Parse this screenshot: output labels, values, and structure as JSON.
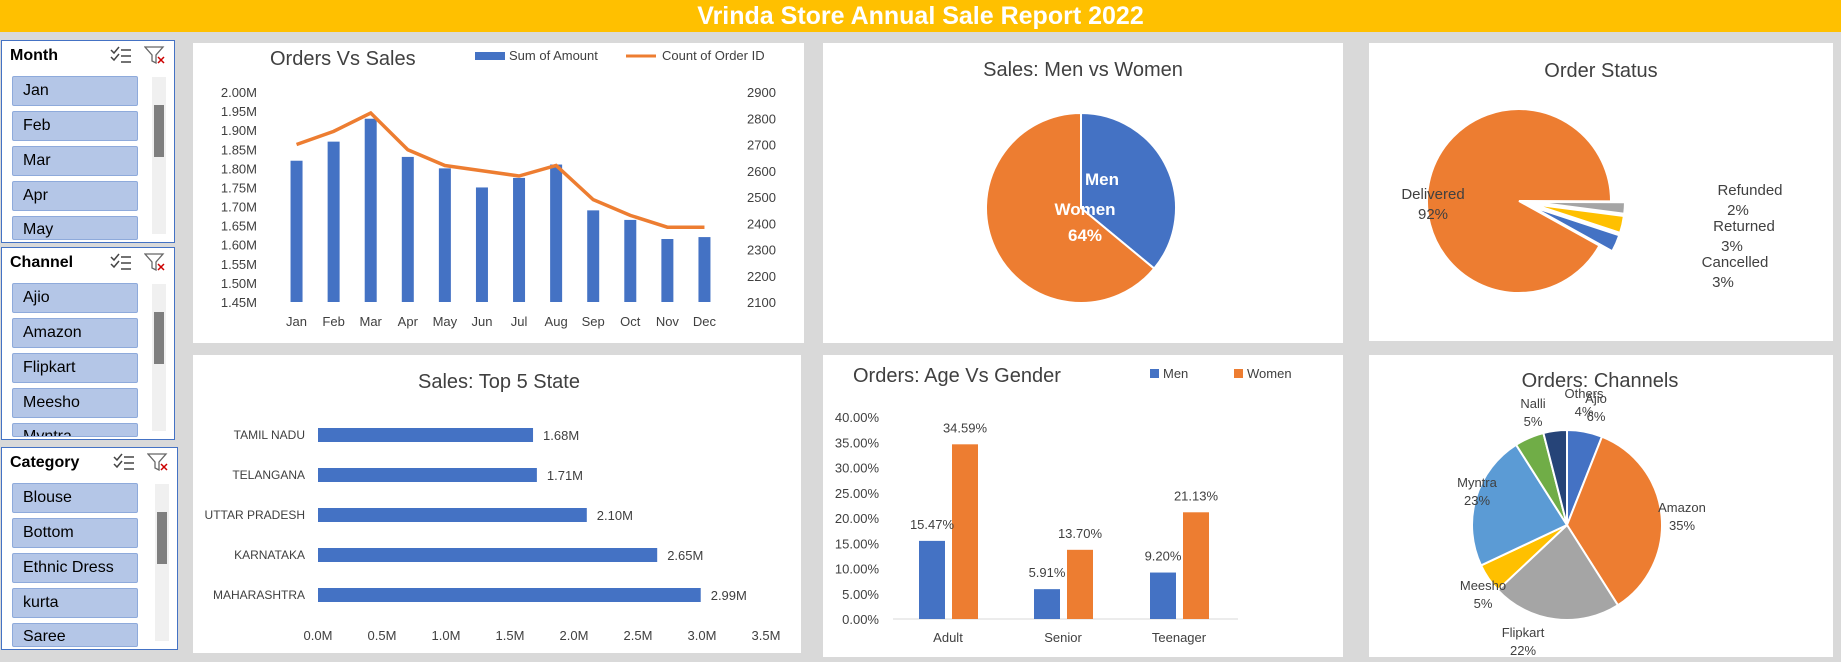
{
  "header": {
    "title": "Vrinda Store Annual Sale Report 2022"
  },
  "colors": {
    "blue": "#4472c4",
    "orange": "#ed7d31",
    "gray": "#a5a5a5",
    "gold": "#ffc000",
    "lightblue": "#5b9bd5",
    "green": "#70ad47",
    "navy": "#264478"
  },
  "slicers": [
    {
      "title": "Month",
      "items": [
        "Jan",
        "Feb",
        "Mar",
        "Apr",
        "May"
      ],
      "icons": [
        "multi-select-icon",
        "clear-filter-icon"
      ]
    },
    {
      "title": "Channel",
      "items": [
        "Ajio",
        "Amazon",
        "Flipkart",
        "Meesho",
        "Myntra"
      ],
      "icons": [
        "multi-select-icon",
        "clear-filter-icon"
      ]
    },
    {
      "title": "Category",
      "items": [
        "Blouse",
        "Bottom",
        "Ethnic Dress",
        "kurta",
        "Saree"
      ],
      "icons": [
        "multi-select-icon",
        "clear-filter-icon"
      ]
    }
  ],
  "chart_data": [
    {
      "type": "bar",
      "title": "Orders Vs Sales",
      "categories": [
        "Jan",
        "Feb",
        "Mar",
        "Apr",
        "May",
        "Jun",
        "Jul",
        "Aug",
        "Sep",
        "Oct",
        "Nov",
        "Dec"
      ],
      "series": [
        {
          "name": "Sum of Amount",
          "type": "bar",
          "axis": "left",
          "values": [
            1.82,
            1.87,
            1.93,
            1.83,
            1.8,
            1.75,
            1.775,
            1.81,
            1.69,
            1.665,
            1.615,
            1.62
          ]
        },
        {
          "name": "Count of Order ID",
          "type": "line",
          "axis": "right",
          "values": [
            2700,
            2750,
            2820,
            2680,
            2620,
            2600,
            2580,
            2620,
            2490,
            2430,
            2385,
            2385
          ]
        }
      ],
      "yticks_left": [
        "1.45M",
        "1.50M",
        "1.55M",
        "1.60M",
        "1.65M",
        "1.70M",
        "1.75M",
        "1.80M",
        "1.85M",
        "1.90M",
        "1.95M",
        "2.00M"
      ],
      "yticks_right": [
        "2100",
        "2200",
        "2300",
        "2400",
        "2500",
        "2600",
        "2700",
        "2800",
        "2900"
      ],
      "ylim_left": [
        1.45,
        2.0
      ],
      "ylim_right": [
        2100,
        2900
      ],
      "legend": "top"
    },
    {
      "type": "pie",
      "title": "Sales: Men vs Women",
      "labels": [
        "Men",
        "Women"
      ],
      "values": [
        36,
        64
      ],
      "data_labels": [
        "Men",
        "Women\n64%"
      ]
    },
    {
      "type": "pie",
      "title": "Order Status",
      "labels": [
        "Delivered",
        "Refunded",
        "Returned",
        "Cancelled"
      ],
      "values": [
        92,
        2,
        3,
        3
      ],
      "percent_labels": [
        "92%",
        "2%",
        "3%",
        "3%"
      ]
    },
    {
      "type": "bar",
      "orientation": "horizontal",
      "title": "Sales: Top 5 State",
      "categories": [
        "TAMIL NADU",
        "TELANGANA",
        "UTTAR PRADESH",
        "KARNATAKA",
        "MAHARASHTRA"
      ],
      "values": [
        1.68,
        1.71,
        2.1,
        2.65,
        2.99
      ],
      "value_labels": [
        "1.68M",
        "1.71M",
        "2.10M",
        "2.65M",
        "2.99M"
      ],
      "xticks": [
        "0.0M",
        "0.5M",
        "1.0M",
        "1.5M",
        "2.0M",
        "2.5M",
        "3.0M",
        "3.5M"
      ],
      "xlim": [
        0,
        3.5
      ]
    },
    {
      "type": "bar",
      "title": "Orders: Age Vs Gender",
      "categories": [
        "Adult",
        "Senior",
        "Teenager"
      ],
      "series": [
        {
          "name": "Men",
          "values": [
            15.47,
            5.91,
            9.2
          ],
          "labels": [
            "15.47%",
            "5.91%",
            "9.20%"
          ]
        },
        {
          "name": "Women",
          "values": [
            34.59,
            13.7,
            21.13
          ],
          "labels": [
            "34.59%",
            "13.70%",
            "21.13%"
          ]
        }
      ],
      "yticks": [
        "0.00%",
        "5.00%",
        "10.00%",
        "15.00%",
        "20.00%",
        "25.00%",
        "30.00%",
        "35.00%",
        "40.00%"
      ],
      "ylim": [
        0,
        40
      ],
      "legend": "top"
    },
    {
      "type": "pie",
      "title": "Orders: Channels",
      "labels": [
        "Ajio",
        "Amazon",
        "Flipkart",
        "Meesho",
        "Myntra",
        "Nalli",
        "Others"
      ],
      "values": [
        6,
        35,
        22,
        5,
        23,
        5,
        4
      ],
      "percent_labels": [
        "6%",
        "35%",
        "22%",
        "5%",
        "23%",
        "5%",
        "4%"
      ]
    }
  ]
}
